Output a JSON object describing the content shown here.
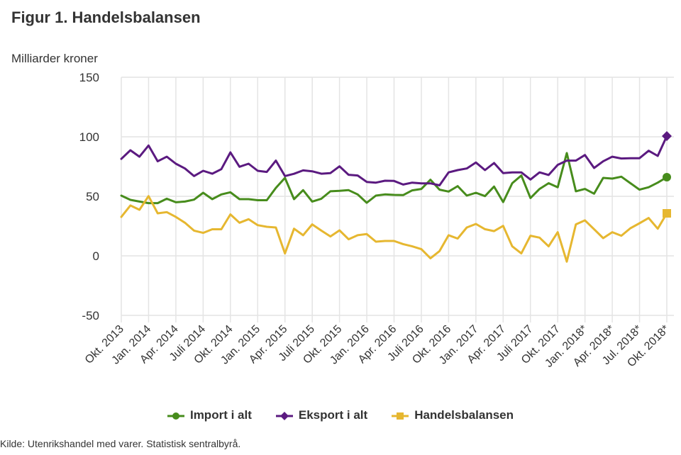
{
  "title": "Figur 1. Handelsbalansen",
  "footer": "Kilde: Utenrikshandel med varer. Statistisk sentralbyrå.",
  "chart_data": {
    "type": "line",
    "title": "Figur 1. Handelsbalansen",
    "ylabel": "Milliarder kroner",
    "xlabel": "",
    "ylim": [
      -50,
      150
    ],
    "yticks": [
      150,
      100,
      50,
      0,
      -50
    ],
    "grid": true,
    "legend_position": "bottom-center",
    "x": [
      "Okt. 2013",
      "Nov. 2013",
      "Des. 2013",
      "Jan. 2014",
      "Feb. 2014",
      "Mar. 2014",
      "Apr. 2014",
      "Mai 2014",
      "Juni 2014",
      "Juli 2014",
      "Aug. 2014",
      "Sep. 2014",
      "Okt. 2014",
      "Nov. 2014",
      "Des. 2014",
      "Jan. 2015",
      "Feb. 2015",
      "Mar. 2015",
      "Apr. 2015",
      "Mai 2015",
      "Juni 2015",
      "Juli 2015",
      "Aug. 2015",
      "Sep. 2015",
      "Okt. 2015",
      "Nov. 2015",
      "Des. 2015",
      "Jan. 2016",
      "Feb. 2016",
      "Mar. 2016",
      "Apr. 2016",
      "Mai 2016",
      "Juni 2016",
      "Juli 2016",
      "Aug. 2016",
      "Sep. 2016",
      "Okt. 2016",
      "Nov. 2016",
      "Des. 2016",
      "Jan. 2017",
      "Feb. 2017",
      "Mar. 2017",
      "Apr. 2017",
      "Mai 2017",
      "Juni 2017",
      "Juli 2017",
      "Aug. 2017",
      "Sep. 2017",
      "Okt. 2017",
      "Nov. 2017",
      "Des. 2017",
      "Jan. 2018*",
      "Feb. 2018*",
      "Mar. 2018*",
      "Apr. 2018*",
      "Mai 2018*",
      "Juni 2018*",
      "Jul. 2018*",
      "Aug. 2018*",
      "Sep. 2018*",
      "Okt. 2018*"
    ],
    "tick_labels": [
      {
        "index": 0,
        "label": "Okt. 2013"
      },
      {
        "index": 3,
        "label": "Jan. 2014"
      },
      {
        "index": 6,
        "label": "Apr. 2014"
      },
      {
        "index": 9,
        "label": "Juli 2014"
      },
      {
        "index": 12,
        "label": "Okt. 2014"
      },
      {
        "index": 15,
        "label": "Jan. 2015"
      },
      {
        "index": 18,
        "label": "Apr. 2015"
      },
      {
        "index": 21,
        "label": "Juli 2015"
      },
      {
        "index": 24,
        "label": "Okt. 2015"
      },
      {
        "index": 27,
        "label": "Jan. 2016"
      },
      {
        "index": 30,
        "label": "Apr. 2016"
      },
      {
        "index": 33,
        "label": "Juli 2016"
      },
      {
        "index": 36,
        "label": "Okt. 2016"
      },
      {
        "index": 39,
        "label": "Jan. 2017"
      },
      {
        "index": 42,
        "label": "Apr. 2017"
      },
      {
        "index": 45,
        "label": "Juli 2017"
      },
      {
        "index": 48,
        "label": "Okt. 2017"
      },
      {
        "index": 51,
        "label": "Jan. 2018*"
      },
      {
        "index": 54,
        "label": "Apr. 2018*"
      },
      {
        "index": 57,
        "label": "Jul. 2018*"
      },
      {
        "index": 60,
        "label": "Okt. 2018*"
      }
    ],
    "series": [
      {
        "name": "Import i alt",
        "color": "#478c1c",
        "marker": "circle",
        "values": [
          50.6,
          47,
          45.6,
          44.3,
          44.3,
          48,
          45,
          45.6,
          47.2,
          53,
          47.6,
          51.6,
          53.4,
          47.6,
          47.6,
          46.7,
          46.7,
          57.1,
          65.5,
          47.6,
          55.2,
          45.6,
          48,
          54.2,
          54.6,
          55.2,
          51.6,
          44.6,
          50.6,
          51.6,
          51.2,
          51,
          55,
          56.2,
          63.9,
          55.6,
          54,
          58.6,
          50.6,
          53,
          50.2,
          58.2,
          45.2,
          61,
          67.5,
          48.6,
          56.2,
          61,
          57.6,
          86.3,
          54.2,
          56.2,
          52.2,
          65.5,
          64.9,
          66.5,
          61,
          55.6,
          57.6,
          61.5,
          66.1
        ]
      },
      {
        "name": "Eksport i alt",
        "color": "#5b1a80",
        "marker": "diamond",
        "values": [
          81.4,
          88.7,
          83.3,
          92.7,
          79.4,
          83.3,
          77.4,
          73.4,
          67,
          71.4,
          69,
          72.8,
          86.9,
          74.8,
          77.4,
          71.4,
          70.5,
          80,
          67,
          68.9,
          71.8,
          71,
          69,
          69.5,
          75.2,
          68.1,
          67.5,
          62.1,
          61.5,
          63.1,
          62.9,
          59.9,
          61.5,
          60.9,
          60.9,
          59.2,
          70.1,
          72,
          73.4,
          78.4,
          72,
          78,
          69.5,
          70.1,
          70.1,
          64.1,
          70.1,
          67.9,
          76.4,
          80,
          80,
          84.7,
          73.8,
          79.4,
          83.3,
          81.8,
          82,
          82,
          88.3,
          83.9,
          100.6
        ]
      },
      {
        "name": "Handelsbalansen",
        "color": "#e6b730",
        "marker": "square",
        "values": [
          32.7,
          42.3,
          38.7,
          50.2,
          35.7,
          36.7,
          32.7,
          27.8,
          21.2,
          19.3,
          22.3,
          22.3,
          34.8,
          27.8,
          30.8,
          25.8,
          24.4,
          23.8,
          2,
          22.8,
          17.3,
          26.4,
          21.2,
          16.3,
          21.4,
          13.9,
          17.3,
          18.3,
          11.9,
          12.5,
          12.5,
          9.9,
          8,
          5.6,
          -2,
          4,
          17.3,
          14.5,
          23.8,
          26.8,
          22.4,
          20.8,
          25.2,
          8,
          2,
          16.9,
          15.3,
          8,
          19.9,
          -4.9,
          26.4,
          29.8,
          22.4,
          14.9,
          19.9,
          16.9,
          23.2,
          27.4,
          31.8,
          22.8,
          35.7
        ]
      }
    ]
  }
}
